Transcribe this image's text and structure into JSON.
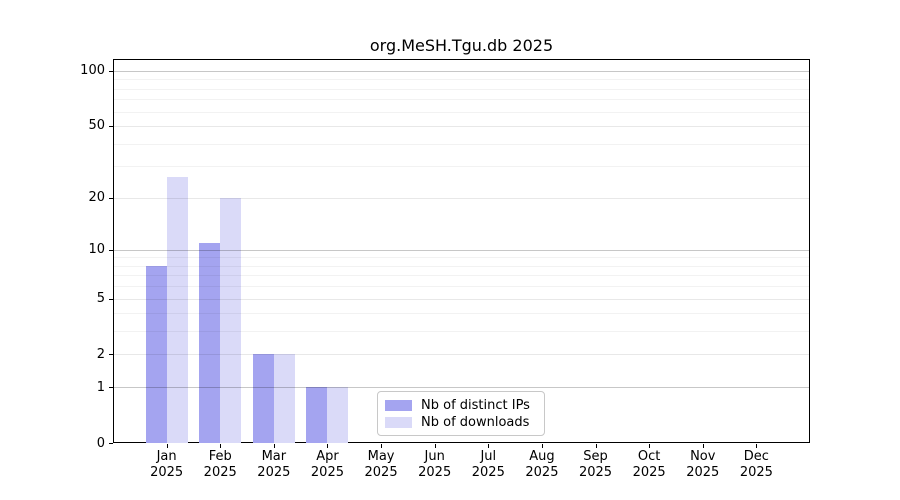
{
  "chart_data": {
    "type": "bar",
    "title": "org.MeSH.Tgu.db 2025",
    "year": "2025",
    "categories": [
      "Jan",
      "Feb",
      "Mar",
      "Apr",
      "May",
      "Jun",
      "Jul",
      "Aug",
      "Sep",
      "Oct",
      "Nov",
      "Dec"
    ],
    "series": [
      {
        "name": "Nb of distinct IPs",
        "color": "#a4a4f0",
        "values": [
          8,
          11,
          2,
          1,
          0,
          0,
          0,
          0,
          0,
          0,
          0,
          0
        ]
      },
      {
        "name": "Nb of downloads",
        "color": "#dadaf8",
        "values": [
          26,
          20,
          2,
          1,
          0,
          0,
          0,
          0,
          0,
          0,
          0,
          0
        ]
      }
    ],
    "yscale": "log1p",
    "yticks": [
      0,
      1,
      2,
      5,
      10,
      20,
      50,
      100
    ],
    "ylim": [
      0,
      116
    ],
    "grid": true,
    "legend_position": "bottom-center-inside",
    "axis_color": "#000000",
    "background_color": "#ffffff"
  }
}
